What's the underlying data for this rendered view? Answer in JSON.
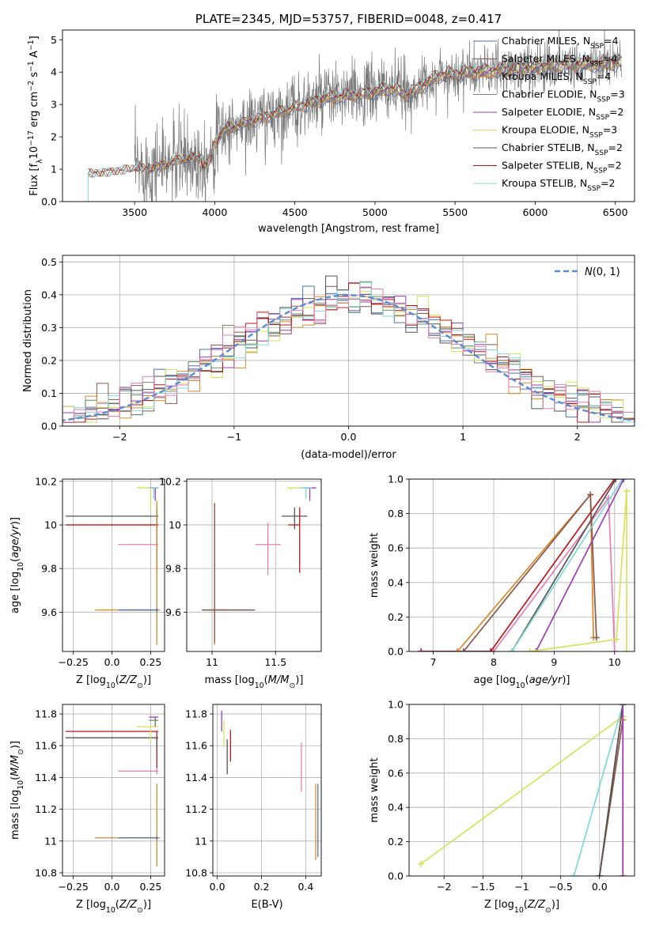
{
  "colors": {
    "chabrier_miles": "#4c72b0",
    "salpeter_miles": "#8c564b",
    "kroupa_miles": "#d98a2b",
    "chabrier_elodie": "#6b8e6b",
    "salpeter_elodie": "#9b3fb5",
    "kroupa_elodie": "#d4e35a",
    "chabrier_stelib": "#555555",
    "salpeter_stelib": "#c0141a",
    "kroupa_stelib": "#7fd6dc",
    "pink": "#e77fb3",
    "data": "#7a7a7a",
    "gauss": "#5b8bd6",
    "grid": "#b0b0b0"
  },
  "legend_labels": [
    {
      "pre": "Chabrier MILES, N",
      "sub": "SSP",
      "post": "=4"
    },
    {
      "pre": "Salpeter MILES, N",
      "sub": "SSP",
      "post": "=4"
    },
    {
      "pre": "Kroupa MILES, N",
      "sub": "SSP",
      "post": "=4"
    },
    {
      "pre": "Chabrier ELODIE, N",
      "sub": "SSP",
      "post": "=3"
    },
    {
      "pre": "Salpeter ELODIE, N",
      "sub": "SSP",
      "post": "=2"
    },
    {
      "pre": "Kroupa ELODIE, N",
      "sub": "SSP",
      "post": "=3"
    },
    {
      "pre": "Chabrier STELIB, N",
      "sub": "SSP",
      "post": "=2"
    },
    {
      "pre": "Salpeter STELIB, N",
      "sub": "SSP",
      "post": "=2"
    },
    {
      "pre": "Kroupa STELIB, N",
      "sub": "SSP",
      "post": "=2"
    }
  ],
  "chart_data": [
    {
      "id": "spectrum",
      "type": "line",
      "title": "PLATE=2345, MJD=53757, FIBERID=0048, z=0.417",
      "xlabel": "wavelength [Angstrom, rest frame]",
      "ylabel": "Flux [f_λ 10^-17 erg cm^-2 s^-1 A^-1]",
      "xlim": [
        3050,
        6620
      ],
      "ylim": [
        0,
        5.3
      ],
      "xticks": [
        3500,
        4000,
        4500,
        5000,
        5500,
        6000,
        6500
      ],
      "yticks": [
        0,
        1,
        2,
        3,
        4,
        5
      ],
      "continuum_knots": [
        [
          3200,
          0.85
        ],
        [
          3400,
          0.95
        ],
        [
          3600,
          1.05
        ],
        [
          3800,
          1.3
        ],
        [
          3950,
          1.4
        ],
        [
          4050,
          2.2
        ],
        [
          4300,
          2.6
        ],
        [
          4500,
          2.9
        ],
        [
          4700,
          3.2
        ],
        [
          4900,
          3.3
        ],
        [
          5100,
          3.5
        ],
        [
          5200,
          3.3
        ],
        [
          5400,
          3.9
        ],
        [
          5600,
          4.0
        ],
        [
          5800,
          4.05
        ],
        [
          6000,
          4.15
        ],
        [
          6200,
          4.25
        ],
        [
          6400,
          4.25
        ],
        [
          6540,
          4.3
        ]
      ],
      "model_start": 3210,
      "data_start": 3500,
      "legend": "upper right"
    },
    {
      "id": "residuals",
      "type": "histogram",
      "xlabel": "(data-model)/error",
      "ylabel": "Normed distribution",
      "xlim": [
        -2.5,
        2.5
      ],
      "ylim": [
        0,
        0.52
      ],
      "xticks": [
        -2,
        -1,
        0,
        1,
        2
      ],
      "yticks": [
        0,
        0.1,
        0.2,
        0.3,
        0.4,
        0.5
      ],
      "bin_width": 0.1,
      "reference_curve": "N(0,1)",
      "legend": "upper right"
    },
    {
      "id": "age_vs_Z",
      "type": "scatter",
      "xlabel": "Z [log10(Z/Z⊙)]",
      "ylabel": "age  [log10(age/yr)]",
      "xlim": [
        -0.32,
        0.34
      ],
      "ylim": [
        9.42,
        10.21
      ],
      "xticks": [
        -0.25,
        0,
        0.25
      ],
      "yticks": [
        9.6,
        9.8,
        10.0,
        10.2
      ],
      "points": [
        {
          "s": "salpeter_stelib",
          "x": 0.29,
          "y": 10.0,
          "xerr": [
            0.59,
            0.01
          ],
          "yerr": [
            0.22,
            0.08
          ]
        },
        {
          "s": "chabrier_stelib",
          "x": 0.29,
          "y": 10.04,
          "xerr": [
            0.59,
            0.01
          ],
          "yerr": [
            0.06,
            0.04
          ]
        },
        {
          "s": "pink",
          "x": 0.29,
          "y": 9.91,
          "xerr": [
            0.25,
            0.01
          ],
          "yerr": [
            0.02,
            0.02
          ]
        },
        {
          "s": "kroupa_miles",
          "x": 0.29,
          "y": 9.61,
          "xerr": [
            0.4,
            0.02
          ],
          "yerr": [
            0.16,
            0.5
          ]
        },
        {
          "s": "chabrier_miles",
          "x": 0.29,
          "y": 9.61,
          "xerr": [
            0.25,
            0.01
          ],
          "yerr": [
            0.01,
            0.01
          ]
        },
        {
          "s": "kroupa_elodie",
          "x": 0.25,
          "y": 10.17,
          "xerr": [
            0.09,
            0.05
          ],
          "yerr": [
            0.1,
            0.0
          ]
        },
        {
          "s": "salpeter_elodie",
          "x": 0.28,
          "y": 10.17,
          "xerr": [
            0.04,
            0.02
          ],
          "yerr": [
            0.06,
            0.0
          ]
        },
        {
          "s": "kroupa_stelib",
          "x": 0.27,
          "y": 10.17,
          "xerr": [
            0.03,
            0.03
          ],
          "yerr": [
            0.05,
            0.0
          ]
        }
      ]
    },
    {
      "id": "age_vs_mass",
      "type": "scatter",
      "xlabel": "mass [log10(M/M⊙)]",
      "ylabel": "",
      "xlim": [
        10.8,
        11.86
      ],
      "ylim": [
        9.42,
        10.21
      ],
      "xticks": [
        11.0,
        11.5
      ],
      "yticks": [
        9.6,
        9.8,
        10.0,
        10.2
      ],
      "points": [
        {
          "s": "kroupa_miles",
          "x": 11.02,
          "y": 9.61,
          "xerr": [
            0.06,
            0.12
          ],
          "yerr": [
            0.16,
            0.49
          ]
        },
        {
          "s": "chabrier_miles",
          "x": 11.02,
          "y": 9.61,
          "xerr": [
            0.1,
            0.32
          ],
          "yerr": [
            0.01,
            0.01
          ]
        },
        {
          "s": "salpeter_miles",
          "x": 11.02,
          "y": 9.61,
          "xerr": [
            0.1,
            0.3
          ],
          "yerr": [
            0.15,
            0.49
          ]
        },
        {
          "s": "pink",
          "x": 11.44,
          "y": 9.91,
          "xerr": [
            0.1,
            0.1
          ],
          "yerr": [
            0.14,
            0.1
          ]
        },
        {
          "s": "chabrier_stelib",
          "x": 11.65,
          "y": 10.04,
          "xerr": [
            0.1,
            0.1
          ],
          "yerr": [
            0.06,
            0.04
          ]
        },
        {
          "s": "salpeter_stelib",
          "x": 11.69,
          "y": 10.0,
          "xerr": [
            0.09,
            0.0
          ],
          "yerr": [
            0.22,
            0.08
          ]
        },
        {
          "s": "kroupa_elodie",
          "x": 11.62,
          "y": 10.17,
          "xerr": [
            0.03,
            0.1
          ],
          "yerr": [
            0.01,
            0.0
          ]
        },
        {
          "s": "salpeter_elodie",
          "x": 11.77,
          "y": 10.17,
          "xerr": [
            0.05,
            0.05
          ],
          "yerr": [
            0.06,
            0.0
          ]
        },
        {
          "s": "kroupa_stelib",
          "x": 11.74,
          "y": 10.17,
          "xerr": [
            0.05,
            0.05
          ],
          "yerr": [
            0.05,
            0.0
          ]
        }
      ]
    },
    {
      "id": "weight_vs_age",
      "type": "line",
      "xlabel": "age  [log10(age/yr)]",
      "ylabel": "mass weight",
      "xlim": [
        6.6,
        10.33
      ],
      "ylim": [
        0,
        1
      ],
      "xticks": [
        7,
        8,
        9,
        10
      ],
      "yticks": [
        0,
        0.2,
        0.4,
        0.6,
        0.8,
        1.0
      ],
      "series": [
        {
          "s": "kroupa_miles",
          "x": [
            7.4,
            9.6,
            9.65
          ],
          "y": [
            0.0,
            0.91,
            0.08
          ]
        },
        {
          "s": "pink",
          "x": [
            6.8,
            8.0,
            9.9,
            10.0
          ],
          "y": [
            0.0,
            0.0,
            0.89,
            0.0
          ]
        },
        {
          "s": "salpeter_stelib",
          "x": [
            6.8,
            7.95,
            10.0
          ],
          "y": [
            0.0,
            0.0,
            1.0
          ]
        },
        {
          "s": "salpeter_miles",
          "x": [
            7.5,
            9.6,
            9.7
          ],
          "y": [
            0.0,
            0.91,
            0.08
          ]
        },
        {
          "s": "chabrier_stelib",
          "x": [
            8.3,
            10.02
          ],
          "y": [
            0.0,
            1.0
          ]
        },
        {
          "s": "kroupa_stelib",
          "x": [
            8.3,
            10.13
          ],
          "y": [
            0.0,
            1.0
          ]
        },
        {
          "s": "salpeter_elodie",
          "x": [
            8.7,
            10.15
          ],
          "y": [
            0.0,
            1.0
          ]
        },
        {
          "s": "kroupa_elodie",
          "x": [
            8.6,
            10.03,
            10.2,
            10.2
          ],
          "y": [
            0.0,
            0.07,
            0.93,
            0.0
          ]
        }
      ]
    },
    {
      "id": "mass_vs_Z",
      "type": "scatter",
      "xlabel": "Z [log10(Z/Z⊙)]",
      "ylabel": "mass [log10(M/M⊙)]",
      "xlim": [
        -0.32,
        0.34
      ],
      "ylim": [
        10.78,
        11.86
      ],
      "xticks": [
        -0.25,
        0,
        0.25
      ],
      "yticks": [
        10.8,
        11.0,
        11.2,
        11.4,
        11.6,
        11.8
      ],
      "points": [
        {
          "s": "salpeter_stelib",
          "x": 0.29,
          "y": 11.69,
          "xerr": [
            0.59,
            0.01
          ],
          "yerr": [
            0.23,
            0.0
          ]
        },
        {
          "s": "chabrier_stelib",
          "x": 0.29,
          "y": 11.65,
          "xerr": [
            0.59,
            0.01
          ],
          "yerr": [
            0.06,
            0.0
          ]
        },
        {
          "s": "pink",
          "x": 0.29,
          "y": 11.44,
          "xerr": [
            0.25,
            0.01
          ],
          "yerr": [
            0.02,
            0.02
          ]
        },
        {
          "s": "kroupa_miles",
          "x": 0.29,
          "y": 11.02,
          "xerr": [
            0.4,
            0.02
          ],
          "yerr": [
            0.18,
            0.34
          ]
        },
        {
          "s": "chabrier_miles",
          "x": 0.29,
          "y": 11.02,
          "xerr": [
            0.25,
            0.01
          ],
          "yerr": [
            0.01,
            0.01
          ]
        },
        {
          "s": "kroupa_elodie",
          "x": 0.25,
          "y": 11.72,
          "xerr": [
            0.09,
            0.05
          ],
          "yerr": [
            0.1,
            0.0
          ]
        },
        {
          "s": "salpeter_elodie",
          "x": 0.28,
          "y": 11.78,
          "xerr": [
            0.04,
            0.02
          ],
          "yerr": [
            0.06,
            0.0
          ]
        },
        {
          "s": "chabrier_elodie",
          "x": 0.28,
          "y": 11.76,
          "xerr": [
            0.04,
            0.02
          ],
          "yerr": [
            0.04,
            0.0
          ]
        }
      ]
    },
    {
      "id": "mass_vs_ebv",
      "type": "scatter",
      "xlabel": "E(B-V)",
      "ylabel": "",
      "xlim": [
        -0.02,
        0.47
      ],
      "ylim": [
        10.78,
        11.86
      ],
      "xticks": [
        0.0,
        0.2,
        0.4
      ],
      "yticks": [
        10.8,
        11.0,
        11.2,
        11.4,
        11.6,
        11.8
      ],
      "points": [
        {
          "s": "salpeter_elodie",
          "x": 0.02,
          "y": 11.75,
          "xerr": [
            0,
            0
          ],
          "yerr": [
            0.06,
            0.07
          ]
        },
        {
          "s": "kroupa_elodie",
          "x": 0.03,
          "y": 11.66,
          "xerr": [
            0,
            0
          ],
          "yerr": [
            0.07,
            0.1
          ]
        },
        {
          "s": "chabrier_stelib",
          "x": 0.045,
          "y": 11.52,
          "xerr": [
            0,
            0
          ],
          "yerr": [
            0.1,
            0.12
          ]
        },
        {
          "s": "salpeter_stelib",
          "x": 0.06,
          "y": 11.57,
          "xerr": [
            0,
            0
          ],
          "yerr": [
            0.07,
            0.13
          ]
        },
        {
          "s": "pink",
          "x": 0.38,
          "y": 11.46,
          "xerr": [
            0,
            0
          ],
          "yerr": [
            0.15,
            0.16
          ]
        },
        {
          "s": "kroupa_miles",
          "x": 0.445,
          "y": 11.12,
          "xerr": [
            0,
            0
          ],
          "yerr": [
            0.24,
            0.24
          ]
        },
        {
          "s": "chabrier_miles",
          "x": 0.455,
          "y": 11.12,
          "xerr": [
            0,
            0
          ],
          "yerr": [
            0.22,
            0.24
          ]
        }
      ]
    },
    {
      "id": "weight_vs_Z",
      "type": "line",
      "xlabel": "Z [log10(Z/Z⊙)]",
      "ylabel": "mass weight",
      "xlim": [
        -2.45,
        0.45
      ],
      "ylim": [
        0,
        1
      ],
      "xticks": [
        -2.0,
        -1.5,
        -1.0,
        -0.5,
        0.0
      ],
      "yticks": [
        0,
        0.2,
        0.4,
        0.6,
        0.8,
        1.0
      ],
      "series": [
        {
          "s": "kroupa_elodie",
          "x": [
            -2.3,
            0.3
          ],
          "y": [
            0.07,
            0.93
          ]
        },
        {
          "s": "kroupa_stelib",
          "x": [
            -0.33,
            0.3
          ],
          "y": [
            0.0,
            1.0
          ]
        },
        {
          "s": "salpeter_stelib",
          "x": [
            0.0,
            0.3
          ],
          "y": [
            0.0,
            1.0
          ]
        },
        {
          "s": "salpeter_miles",
          "x": [
            0.0,
            0.3
          ],
          "y": [
            0.0,
            0.91
          ]
        },
        {
          "s": "chabrier_stelib",
          "x": [
            0.0,
            0.3
          ],
          "y": [
            0.0,
            1.0
          ]
        },
        {
          "s": "kroupa_miles",
          "x": [
            0.3,
            0.3
          ],
          "y": [
            0.0,
            0.91
          ]
        },
        {
          "s": "salpeter_elodie",
          "x": [
            0.3,
            0.3
          ],
          "y": [
            0.0,
            1.0
          ]
        }
      ]
    }
  ]
}
